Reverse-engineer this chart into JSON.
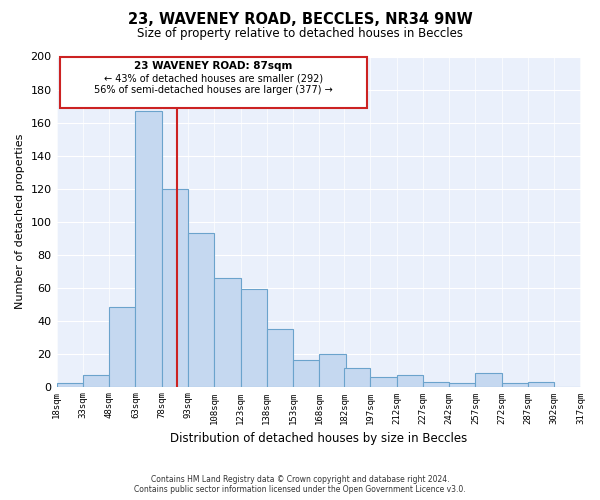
{
  "title": "23, WAVENEY ROAD, BECCLES, NR34 9NW",
  "subtitle": "Size of property relative to detached houses in Beccles",
  "xlabel": "Distribution of detached houses by size in Beccles",
  "ylabel": "Number of detached properties",
  "bar_color": "#c5d8f0",
  "bar_edge_color": "#6ba3cc",
  "background_color": "#eaf0fb",
  "vline_x": 87,
  "vline_color": "#cc2222",
  "bins_left": [
    18,
    33,
    48,
    63,
    78,
    93,
    108,
    123,
    138,
    153,
    168,
    182,
    197,
    212,
    227,
    242,
    257,
    272,
    287,
    302
  ],
  "bin_width": 15,
  "heights": [
    2,
    7,
    48,
    167,
    120,
    93,
    66,
    59,
    35,
    16,
    20,
    11,
    6,
    7,
    3,
    2,
    8,
    2,
    3,
    0
  ],
  "xlim": [
    18,
    317
  ],
  "ylim": [
    0,
    200
  ],
  "yticks": [
    0,
    20,
    40,
    60,
    80,
    100,
    120,
    140,
    160,
    180,
    200
  ],
  "xtick_labels": [
    "18sqm",
    "33sqm",
    "48sqm",
    "63sqm",
    "78sqm",
    "93sqm",
    "108sqm",
    "123sqm",
    "138sqm",
    "153sqm",
    "168sqm",
    "182sqm",
    "197sqm",
    "212sqm",
    "227sqm",
    "242sqm",
    "257sqm",
    "272sqm",
    "287sqm",
    "302sqm",
    "317sqm"
  ],
  "xtick_positions": [
    18,
    33,
    48,
    63,
    78,
    93,
    108,
    123,
    138,
    153,
    168,
    182,
    197,
    212,
    227,
    242,
    257,
    272,
    287,
    302,
    317
  ],
  "annotation_title": "23 WAVENEY ROAD: 87sqm",
  "annotation_line1": "← 43% of detached houses are smaller (292)",
  "annotation_line2": "56% of semi-detached houses are larger (377) →",
  "footer_line1": "Contains HM Land Registry data © Crown copyright and database right 2024.",
  "footer_line2": "Contains public sector information licensed under the Open Government Licence v3.0."
}
